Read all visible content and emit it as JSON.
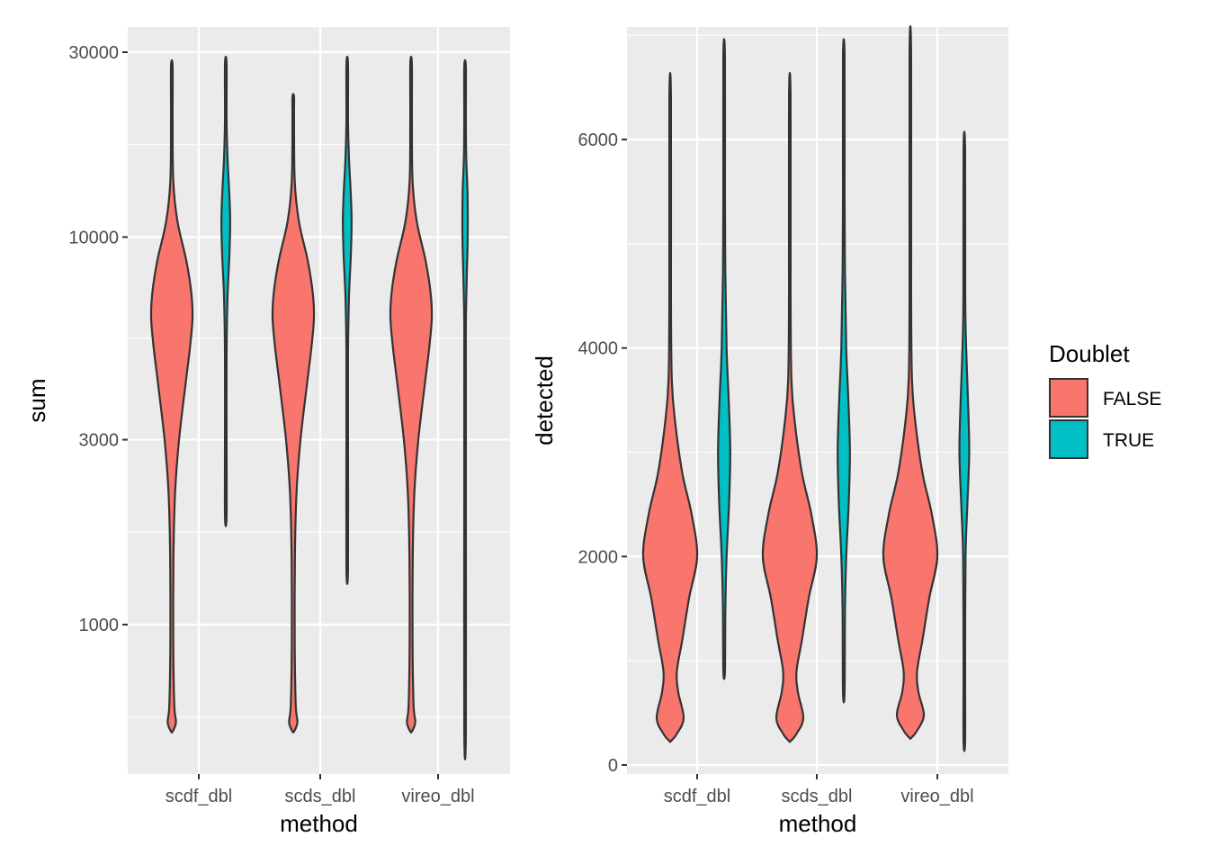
{
  "chart_data": [
    {
      "type": "violin",
      "xlabel": "method",
      "ylabel": "sum",
      "yscale": "log10",
      "ylim": [
        500,
        35000
      ],
      "yticks": [
        1000,
        3000,
        10000,
        30000
      ],
      "ytick_labels": [
        "1000",
        "3000",
        "10000",
        "30000"
      ],
      "categories": [
        "scdf_dbl",
        "scds_dbl",
        "vireo_dbl"
      ],
      "series": [
        {
          "name": "FALSE",
          "violins": [
            {
              "category": "scdf_dbl",
              "min": 530,
              "max": 27500,
              "profile": [
                [
                  530,
                  0.03
                ],
                [
                  560,
                  0.2
                ],
                [
                  620,
                  0.12
                ],
                [
                  900,
                  0.07
                ],
                [
                  1500,
                  0.08
                ],
                [
                  2200,
                  0.16
                ],
                [
                  3000,
                  0.35
                ],
                [
                  4200,
                  0.67
                ],
                [
                  5200,
                  0.88
                ],
                [
                  6200,
                  1.0
                ],
                [
                  7200,
                  0.94
                ],
                [
                  8700,
                  0.7
                ],
                [
                  11000,
                  0.27
                ],
                [
                  14000,
                  0.07
                ],
                [
                  20000,
                  0.03
                ],
                [
                  27500,
                  0.02
                ]
              ]
            },
            {
              "category": "scds_dbl",
              "min": 530,
              "max": 23000,
              "profile": [
                [
                  530,
                  0.03
                ],
                [
                  560,
                  0.2
                ],
                [
                  620,
                  0.12
                ],
                [
                  900,
                  0.07
                ],
                [
                  1500,
                  0.08
                ],
                [
                  2200,
                  0.16
                ],
                [
                  3000,
                  0.35
                ],
                [
                  4200,
                  0.67
                ],
                [
                  5200,
                  0.88
                ],
                [
                  6200,
                  1.0
                ],
                [
                  7200,
                  0.94
                ],
                [
                  8700,
                  0.7
                ],
                [
                  11000,
                  0.27
                ],
                [
                  14000,
                  0.07
                ],
                [
                  20000,
                  0.03
                ],
                [
                  23000,
                  0.02
                ]
              ]
            },
            {
              "category": "vireo_dbl",
              "min": 530,
              "max": 28000,
              "profile": [
                [
                  530,
                  0.03
                ],
                [
                  560,
                  0.2
                ],
                [
                  620,
                  0.12
                ],
                [
                  900,
                  0.07
                ],
                [
                  1500,
                  0.08
                ],
                [
                  2200,
                  0.16
                ],
                [
                  3000,
                  0.35
                ],
                [
                  4200,
                  0.67
                ],
                [
                  5200,
                  0.88
                ],
                [
                  6200,
                  1.0
                ],
                [
                  7200,
                  0.94
                ],
                [
                  8700,
                  0.7
                ],
                [
                  11000,
                  0.27
                ],
                [
                  14000,
                  0.07
                ],
                [
                  20000,
                  0.03
                ],
                [
                  28000,
                  0.02
                ]
              ]
            }
          ]
        },
        {
          "name": "TRUE",
          "violins": [
            {
              "category": "scdf_dbl",
              "min": 1900,
              "max": 28000,
              "profile": [
                [
                  1900,
                  0.04
                ],
                [
                  3000,
                  0.05
                ],
                [
                  5000,
                  0.1
                ],
                [
                  7000,
                  0.3
                ],
                [
                  9000,
                  0.62
                ],
                [
                  11000,
                  0.75
                ],
                [
                  13000,
                  0.6
                ],
                [
                  16000,
                  0.3
                ],
                [
                  20000,
                  0.12
                ],
                [
                  28000,
                  0.03
                ]
              ]
            },
            {
              "category": "scds_dbl",
              "min": 1400,
              "max": 28000,
              "profile": [
                [
                  1400,
                  0.04
                ],
                [
                  3000,
                  0.05
                ],
                [
                  5000,
                  0.1
                ],
                [
                  7000,
                  0.3
                ],
                [
                  9000,
                  0.62
                ],
                [
                  11000,
                  0.75
                ],
                [
                  13000,
                  0.6
                ],
                [
                  16000,
                  0.3
                ],
                [
                  20000,
                  0.12
                ],
                [
                  28000,
                  0.03
                ]
              ]
            },
            {
              "category": "vireo_dbl",
              "min": 530,
              "max": 27500,
              "profile": [
                [
                  530,
                  0.04
                ],
                [
                  2000,
                  0.03
                ],
                [
                  4000,
                  0.03
                ],
                [
                  6000,
                  0.08
                ],
                [
                  8000,
                  0.3
                ],
                [
                  10000,
                  0.45
                ],
                [
                  13000,
                  0.42
                ],
                [
                  16000,
                  0.2
                ],
                [
                  20000,
                  0.08
                ],
                [
                  27500,
                  0.03
                ]
              ]
            }
          ]
        }
      ]
    },
    {
      "type": "violin",
      "xlabel": "method",
      "ylabel": "detected",
      "ylim": [
        -100,
        7000
      ],
      "yticks": [
        0,
        2000,
        4000,
        6000
      ],
      "ytick_labels": [
        "0",
        "2000",
        "4000",
        "6000"
      ],
      "categories": [
        "scdf_dbl",
        "scds_dbl",
        "vireo_dbl"
      ],
      "series": [
        {
          "name": "FALSE",
          "violins": [
            {
              "category": "scdf_dbl",
              "min": 230,
              "max": 6400,
              "profile": [
                [
                  230,
                  0.02
                ],
                [
                  300,
                  0.25
                ],
                [
                  450,
                  0.5
                ],
                [
                  700,
                  0.3
                ],
                [
                  900,
                  0.25
                ],
                [
                  1200,
                  0.45
                ],
                [
                  1600,
                  0.7
                ],
                [
                  2000,
                  1.0
                ],
                [
                  2400,
                  0.8
                ],
                [
                  2800,
                  0.45
                ],
                [
                  3300,
                  0.18
                ],
                [
                  3700,
                  0.06
                ],
                [
                  4500,
                  0.02
                ],
                [
                  6400,
                  0.01
                ]
              ]
            },
            {
              "category": "scds_dbl",
              "min": 230,
              "max": 6400,
              "profile": [
                [
                  230,
                  0.02
                ],
                [
                  300,
                  0.25
                ],
                [
                  450,
                  0.5
                ],
                [
                  700,
                  0.3
                ],
                [
                  900,
                  0.25
                ],
                [
                  1200,
                  0.45
                ],
                [
                  1600,
                  0.7
                ],
                [
                  2000,
                  1.0
                ],
                [
                  2400,
                  0.8
                ],
                [
                  2800,
                  0.45
                ],
                [
                  3300,
                  0.18
                ],
                [
                  3700,
                  0.06
                ],
                [
                  4500,
                  0.02
                ],
                [
                  6400,
                  0.01
                ]
              ]
            },
            {
              "category": "vireo_dbl",
              "min": 260,
              "max": 6800,
              "profile": [
                [
                  260,
                  0.02
                ],
                [
                  330,
                  0.25
                ],
                [
                  480,
                  0.5
                ],
                [
                  700,
                  0.3
                ],
                [
                  900,
                  0.25
                ],
                [
                  1200,
                  0.45
                ],
                [
                  1600,
                  0.7
                ],
                [
                  2000,
                  1.0
                ],
                [
                  2400,
                  0.8
                ],
                [
                  2800,
                  0.45
                ],
                [
                  3300,
                  0.18
                ],
                [
                  3700,
                  0.06
                ],
                [
                  4500,
                  0.02
                ],
                [
                  6800,
                  0.01
                ]
              ]
            }
          ]
        },
        {
          "name": "TRUE",
          "violins": [
            {
              "category": "scdf_dbl",
              "min": 900,
              "max": 6800,
              "profile": [
                [
                  900,
                  0.02
                ],
                [
                  1500,
                  0.04
                ],
                [
                  2000,
                  0.08
                ],
                [
                  2500,
                  0.16
                ],
                [
                  3000,
                  0.2
                ],
                [
                  3500,
                  0.15
                ],
                [
                  4000,
                  0.08
                ],
                [
                  4700,
                  0.04
                ],
                [
                  5500,
                  0.02
                ],
                [
                  6800,
                  0.01
                ]
              ]
            },
            {
              "category": "scds_dbl",
              "min": 700,
              "max": 6800,
              "profile": [
                [
                  700,
                  0.02
                ],
                [
                  1500,
                  0.04
                ],
                [
                  2000,
                  0.08
                ],
                [
                  2500,
                  0.16
                ],
                [
                  3000,
                  0.2
                ],
                [
                  3500,
                  0.15
                ],
                [
                  4000,
                  0.08
                ],
                [
                  4700,
                  0.04
                ],
                [
                  5500,
                  0.02
                ],
                [
                  6800,
                  0.01
                ]
              ]
            },
            {
              "category": "vireo_dbl",
              "min": 230,
              "max": 5900,
              "profile": [
                [
                  230,
                  0.02
                ],
                [
                  1000,
                  0.02
                ],
                [
                  2000,
                  0.04
                ],
                [
                  2500,
                  0.1
                ],
                [
                  3000,
                  0.16
                ],
                [
                  3500,
                  0.12
                ],
                [
                  4000,
                  0.06
                ],
                [
                  4500,
                  0.03
                ],
                [
                  5900,
                  0.01
                ]
              ]
            }
          ]
        }
      ]
    }
  ],
  "legend": {
    "title": "Doublet",
    "position": "right",
    "items": [
      {
        "label": "FALSE",
        "color": "#F8766D"
      },
      {
        "label": "TRUE",
        "color": "#00BFC4"
      }
    ]
  },
  "colors": {
    "FALSE": "#F8766D",
    "TRUE": "#00BFC4",
    "panel": "#EBEBEB",
    "grid": "#FFFFFF",
    "outline": "#333333"
  }
}
